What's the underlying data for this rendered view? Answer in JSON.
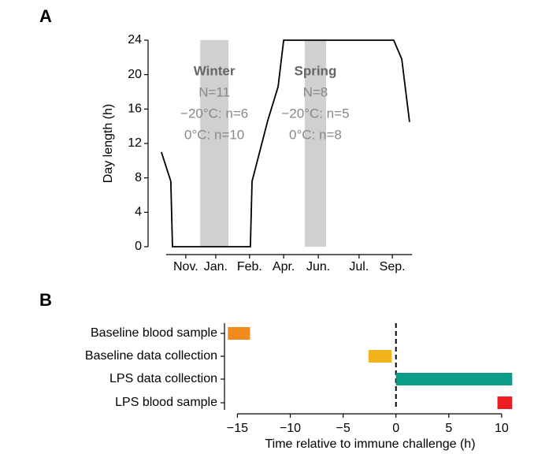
{
  "chart_data": [
    {
      "type": "line",
      "panel_label": "A",
      "ylabel": "Day length (h)",
      "x": [
        0.48,
        0.82,
        0.88,
        3.69,
        3.75,
        4.32,
        4.69,
        4.89,
        8.86,
        9.15,
        9.43
      ],
      "series": [
        {
          "color": "#000000",
          "values": [
            11,
            7.6,
            0,
            0,
            7.6,
            14.7,
            18.6,
            24,
            24,
            21.8,
            14.5
          ]
        }
      ],
      "xlim": [
        0,
        10
      ],
      "xticks": [
        {
          "value": 1.36,
          "label": "Nov."
        },
        {
          "value": 2.44,
          "label": "Jan."
        },
        {
          "value": 3.66,
          "label": "Feb."
        },
        {
          "value": 4.89,
          "label": "Apr."
        },
        {
          "value": 6.14,
          "label": "Jun."
        },
        {
          "value": 7.61,
          "label": "Jul."
        },
        {
          "value": 8.81,
          "label": "Sep."
        }
      ],
      "ylim": [
        0,
        24
      ],
      "yticks": [
        0,
        4,
        8,
        12,
        16,
        20,
        24
      ],
      "shaded_regions": [
        {
          "x": [
            1.88,
            2.9
          ],
          "color": "#d0d0d0",
          "label": [
            "Winter",
            "N=11",
            "−20°C: n=6",
            "0°C: n=10"
          ]
        },
        {
          "x": [
            5.65,
            6.42
          ],
          "color": "#d0d0d0",
          "label": [
            "Spring",
            "N=8",
            "−20°C: n=5",
            "0°C: n=8"
          ]
        }
      ]
    },
    {
      "type": "range_bar",
      "panel_label": "B",
      "xlabel": "Time relative to immune challenge (h)",
      "categories": [
        "Baseline blood sample",
        "Baseline data collection",
        "LPS data collection",
        "LPS blood sample"
      ],
      "starts": [
        -15.9,
        -2.6,
        0,
        9.6
      ],
      "ends": [
        -13.8,
        -0.4,
        11,
        11
      ],
      "colors": [
        "#f28a1c",
        "#f2b21b",
        "#0a9e88",
        "#ee1d23"
      ],
      "xlim": [
        -16,
        11.2
      ],
      "xticks": [
        {
          "value": -15,
          "label": "−15"
        },
        {
          "value": -10,
          "label": "−10"
        },
        {
          "value": -5,
          "label": "−5"
        },
        0,
        5,
        10
      ],
      "reference_line": 0
    }
  ]
}
